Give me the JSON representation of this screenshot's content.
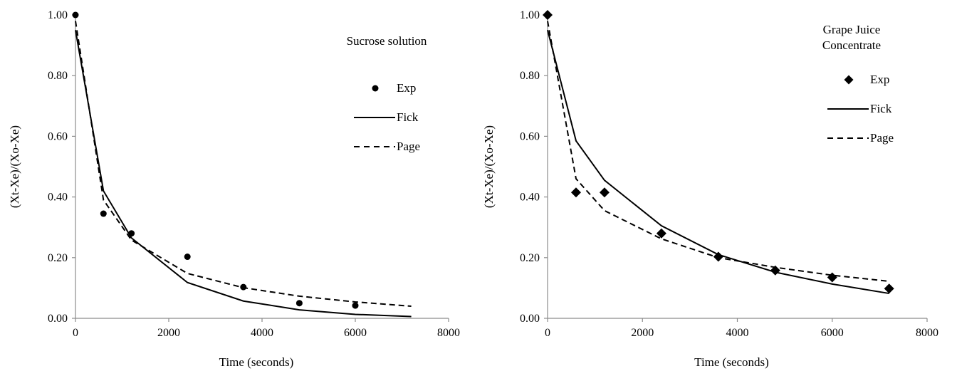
{
  "chart_data": [
    {
      "type": "scatter",
      "legend_title": [
        "Sucrose solution"
      ],
      "xlabel": "Time (seconds)",
      "ylabel": "(Xt-Xe)/(Xo-Xe)",
      "xlim": [
        0,
        8000
      ],
      "ylim": [
        0,
        1
      ],
      "x_ticks": [
        0,
        2000,
        4000,
        6000,
        8000
      ],
      "y_ticks": [
        0,
        0.2,
        0.4,
        0.6,
        0.8,
        1.0
      ],
      "x_tick_labels": [
        "0",
        "2000",
        "4000",
        "6000",
        "8000"
      ],
      "y_tick_labels": [
        "0.00",
        "0.20",
        "0.40",
        "0.60",
        "0.80",
        "1.00"
      ],
      "grid": false,
      "legend_position": "right",
      "marker": "circle",
      "series": [
        {
          "name": "Exp",
          "style": "marker",
          "x": [
            0,
            600,
            1200,
            2400,
            3600,
            4800,
            6000
          ],
          "y": [
            1.0,
            0.345,
            0.28,
            0.203,
            0.103,
            0.05,
            0.042
          ]
        },
        {
          "name": "Fick",
          "style": "solid",
          "x": [
            0,
            600,
            1200,
            2400,
            3600,
            4800,
            6000,
            7200
          ],
          "y": [
            0.95,
            0.42,
            0.265,
            0.118,
            0.057,
            0.028,
            0.013,
            0.006
          ]
        },
        {
          "name": "Page",
          "style": "dashed",
          "x": [
            0,
            600,
            1200,
            2400,
            3600,
            4800,
            6000,
            7200
          ],
          "y": [
            0.98,
            0.39,
            0.258,
            0.148,
            0.101,
            0.073,
            0.054,
            0.04
          ]
        }
      ]
    },
    {
      "type": "scatter",
      "legend_title": [
        "Grape Juice",
        "Concentrate"
      ],
      "xlabel": "Time (seconds)",
      "ylabel": "(Xt-Xe)/(Xo-Xe)",
      "xlim": [
        0,
        8000
      ],
      "ylim": [
        0,
        1
      ],
      "x_ticks": [
        0,
        2000,
        4000,
        6000,
        8000
      ],
      "y_ticks": [
        0,
        0.2,
        0.4,
        0.6,
        0.8,
        1.0
      ],
      "x_tick_labels": [
        "0",
        "2000",
        "4000",
        "6000",
        "8000"
      ],
      "y_tick_labels": [
        "0.00",
        "0.20",
        "0.40",
        "0.60",
        "0.80",
        "1.00"
      ],
      "grid": false,
      "legend_position": "right",
      "marker": "diamond",
      "series": [
        {
          "name": "Exp",
          "style": "marker",
          "x": [
            0,
            600,
            1200,
            2400,
            3600,
            4800,
            6000,
            7200
          ],
          "y": [
            1.0,
            0.415,
            0.415,
            0.28,
            0.203,
            0.158,
            0.135,
            0.098
          ]
        },
        {
          "name": "Fick",
          "style": "solid",
          "x": [
            0,
            600,
            1200,
            2400,
            3600,
            4800,
            6000,
            7200
          ],
          "y": [
            0.95,
            0.585,
            0.455,
            0.305,
            0.21,
            0.152,
            0.113,
            0.082
          ]
        },
        {
          "name": "Page",
          "style": "dashed",
          "x": [
            0,
            600,
            1200,
            2400,
            3600,
            4800,
            6000,
            7200
          ],
          "y": [
            0.98,
            0.46,
            0.355,
            0.262,
            0.2,
            0.168,
            0.142,
            0.122
          ]
        }
      ]
    }
  ]
}
